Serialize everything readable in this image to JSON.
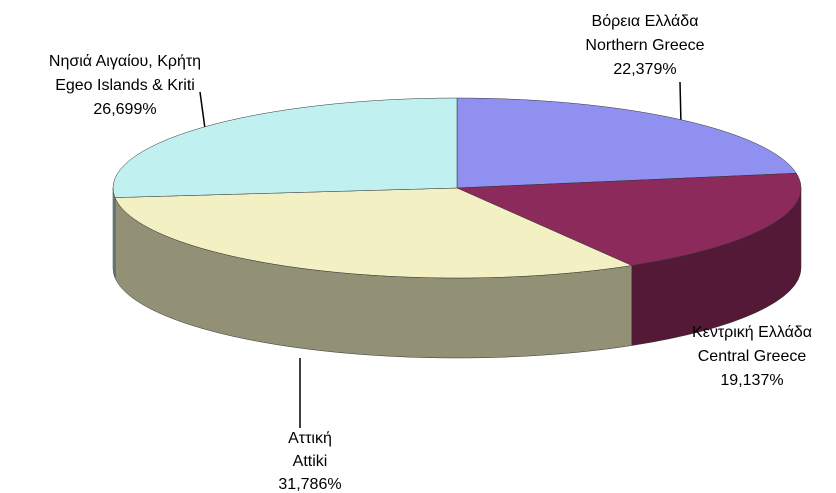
{
  "chart_data": {
    "type": "pie3d",
    "categories": [
      "Βόρεια Ελλάδα",
      "Κεντρική Ελλάδα",
      "Αττική",
      "Νησιά Αιγαίου, Κρήτη"
    ],
    "categories_en": [
      "Northern Greece",
      "Central Greece",
      "Attiki",
      "Egeo Islands  & Kriti"
    ],
    "values": [
      22.379,
      19.137,
      31.786,
      26.699
    ],
    "value_labels": [
      "22,379%",
      "19,137%",
      "31,786%",
      "26,699%"
    ],
    "colors": [
      "#9090f0",
      "#8c2a5c",
      "#f3f1c4",
      "#c0f0f0"
    ]
  }
}
